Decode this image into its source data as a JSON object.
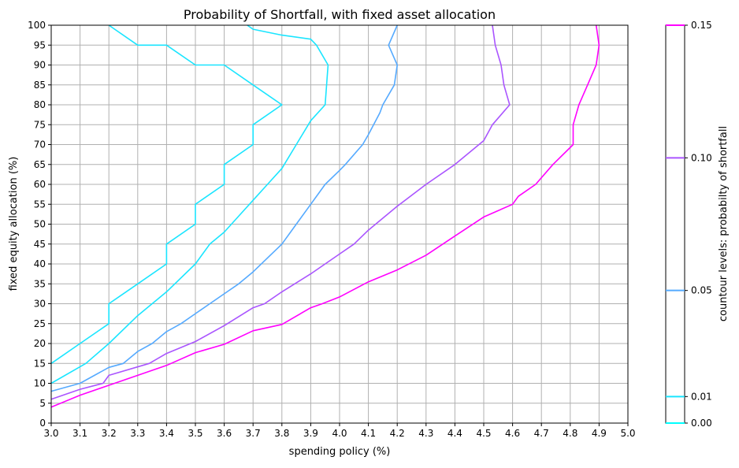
{
  "chart_data": {
    "type": "contour",
    "title": "Probability of Shortfall, with fixed asset allocation",
    "xlabel": "spending policy (%)",
    "ylabel": "fixed equity allocation (%)",
    "xlim": [
      3.0,
      5.0
    ],
    "ylim": [
      0,
      100
    ],
    "xticks": [
      "3.0",
      "3.1",
      "3.2",
      "3.3",
      "3.4",
      "3.5",
      "3.6",
      "3.7",
      "3.8",
      "3.9",
      "4.0",
      "4.1",
      "4.2",
      "4.3",
      "4.4",
      "4.5",
      "4.6",
      "4.7",
      "4.8",
      "4.9",
      "5.0"
    ],
    "yticks": [
      "0",
      "5",
      "10",
      "15",
      "20",
      "25",
      "30",
      "35",
      "40",
      "45",
      "50",
      "55",
      "60",
      "65",
      "70",
      "75",
      "80",
      "85",
      "90",
      "95",
      "100"
    ],
    "grid": true,
    "colorbar": {
      "label": "countour levels: probabilty of shortfall",
      "ticks": [
        "0.00",
        "0.01",
        "0.05",
        "0.10",
        "0.15"
      ],
      "colors": [
        "#00ffff",
        "#1ae5ff",
        "#55aaff",
        "#aa55ff",
        "#ff00ff"
      ]
    },
    "series": [
      {
        "level": "0.005",
        "color": "#1ae5ff",
        "points": [
          [
            3.0,
            15
          ],
          [
            3.1,
            20
          ],
          [
            3.2,
            25
          ],
          [
            3.2,
            30
          ],
          [
            3.3,
            35
          ],
          [
            3.4,
            40
          ],
          [
            3.4,
            45
          ],
          [
            3.5,
            50
          ],
          [
            3.5,
            55
          ],
          [
            3.6,
            60
          ],
          [
            3.6,
            65
          ],
          [
            3.7,
            70
          ],
          [
            3.7,
            75
          ],
          [
            3.8,
            80
          ],
          [
            3.7,
            85
          ],
          [
            3.6,
            90
          ],
          [
            3.5,
            90
          ],
          [
            3.4,
            95
          ],
          [
            3.3,
            95
          ],
          [
            3.2,
            100
          ]
        ]
      },
      {
        "level": "0.01",
        "color": "#1ae5ff",
        "points": [
          [
            3.0,
            10
          ],
          [
            3.12,
            15
          ],
          [
            3.2,
            20
          ],
          [
            3.3,
            27
          ],
          [
            3.35,
            30
          ],
          [
            3.4,
            33
          ],
          [
            3.5,
            40
          ],
          [
            3.55,
            45
          ],
          [
            3.6,
            48
          ],
          [
            3.65,
            52
          ],
          [
            3.7,
            56
          ],
          [
            3.75,
            60
          ],
          [
            3.8,
            64
          ],
          [
            3.85,
            70
          ],
          [
            3.9,
            76
          ],
          [
            3.95,
            80
          ],
          [
            3.96,
            90
          ],
          [
            3.92,
            95
          ],
          [
            3.9,
            96.5
          ],
          [
            3.8,
            97.5
          ],
          [
            3.7,
            99
          ],
          [
            3.68,
            100
          ]
        ]
      },
      {
        "level": "0.05",
        "color": "#55aaff",
        "points": [
          [
            3.0,
            8
          ],
          [
            3.1,
            10
          ],
          [
            3.2,
            14
          ],
          [
            3.25,
            15
          ],
          [
            3.3,
            18
          ],
          [
            3.35,
            20
          ],
          [
            3.4,
            23
          ],
          [
            3.45,
            25
          ],
          [
            3.5,
            27.5
          ],
          [
            3.55,
            30
          ],
          [
            3.6,
            32.5
          ],
          [
            3.65,
            35
          ],
          [
            3.7,
            38
          ],
          [
            3.75,
            41.5
          ],
          [
            3.8,
            45
          ],
          [
            3.85,
            50
          ],
          [
            3.9,
            55
          ],
          [
            3.95,
            60
          ],
          [
            4.0,
            63.5
          ],
          [
            4.02,
            65
          ],
          [
            4.08,
            70
          ],
          [
            4.1,
            72.5
          ],
          [
            4.14,
            78
          ],
          [
            4.15,
            80
          ],
          [
            4.19,
            85
          ],
          [
            4.2,
            90
          ],
          [
            4.17,
            95
          ],
          [
            4.2,
            100
          ]
        ]
      },
      {
        "level": "0.10",
        "color": "#aa55ff",
        "points": [
          [
            3.0,
            6
          ],
          [
            3.1,
            8.5
          ],
          [
            3.18,
            10
          ],
          [
            3.2,
            12
          ],
          [
            3.34,
            15
          ],
          [
            3.4,
            17.5
          ],
          [
            3.5,
            20.5
          ],
          [
            3.6,
            24.5
          ],
          [
            3.7,
            29
          ],
          [
            3.74,
            30
          ],
          [
            3.8,
            33
          ],
          [
            3.9,
            37.5
          ],
          [
            3.95,
            40
          ],
          [
            4.0,
            42.5
          ],
          [
            4.05,
            45
          ],
          [
            4.1,
            48.5
          ],
          [
            4.2,
            54.5
          ],
          [
            4.3,
            60
          ],
          [
            4.4,
            65
          ],
          [
            4.5,
            71
          ],
          [
            4.53,
            75
          ],
          [
            4.59,
            80
          ],
          [
            4.57,
            85
          ],
          [
            4.56,
            90
          ],
          [
            4.54,
            95
          ],
          [
            4.53,
            100
          ]
        ]
      },
      {
        "level": "0.15",
        "color": "#ff00ff",
        "points": [
          [
            3.0,
            4
          ],
          [
            3.1,
            7
          ],
          [
            3.2,
            9.5
          ],
          [
            3.3,
            12
          ],
          [
            3.4,
            14.5
          ],
          [
            3.5,
            17.7
          ],
          [
            3.6,
            19.8
          ],
          [
            3.7,
            23.2
          ],
          [
            3.8,
            24.8
          ],
          [
            3.9,
            29
          ],
          [
            3.94,
            30
          ],
          [
            4.0,
            31.7
          ],
          [
            4.1,
            35.5
          ],
          [
            4.2,
            38.5
          ],
          [
            4.3,
            42.2
          ],
          [
            4.4,
            47
          ],
          [
            4.5,
            51.8
          ],
          [
            4.6,
            55
          ],
          [
            4.62,
            57
          ],
          [
            4.68,
            60
          ],
          [
            4.74,
            65
          ],
          [
            4.81,
            70
          ],
          [
            4.81,
            75
          ],
          [
            4.83,
            80
          ],
          [
            4.86,
            85
          ],
          [
            4.89,
            90
          ],
          [
            4.9,
            95
          ],
          [
            4.89,
            100
          ]
        ]
      }
    ]
  }
}
